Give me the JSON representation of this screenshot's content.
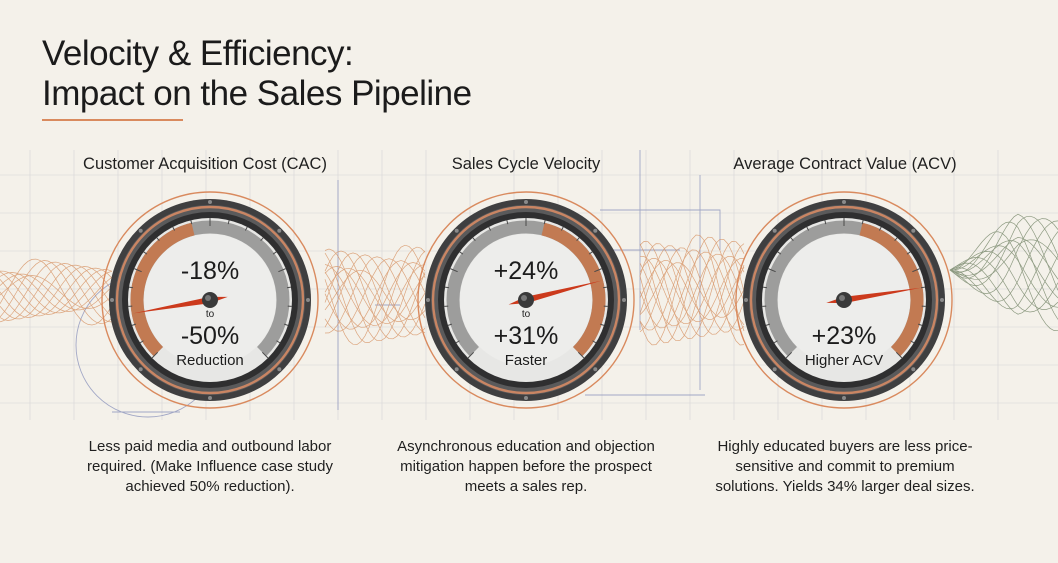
{
  "title": {
    "line1": "Velocity & Efficiency:",
    "line2": "Impact on the Sales Pipeline"
  },
  "colors": {
    "accent": "#d98a5e",
    "needle": "#cc3a1c",
    "bezel": "#4d4d4d",
    "face": "#e7e7e5",
    "wave_orange": "#d48c5a",
    "wave_green": "#6b7d5e"
  },
  "gauges": [
    {
      "title": "Customer Acquisition Cost (CAC)",
      "value_top": "-18%",
      "joiner": "to",
      "value_bottom": "-50%",
      "caption": "Reduction",
      "needle_level": 0.13,
      "highlight_side": "left",
      "description": "Less paid media and outbound labor required. (Make Influence case study achieved 50% reduction)."
    },
    {
      "title": "Sales Cycle Velocity",
      "value_top": "+24%",
      "joiner": "to",
      "value_bottom": "+31%",
      "caption": "Faster",
      "needle_level": 0.78,
      "highlight_side": "right",
      "description": "Asynchronous education and objection mitigation happen before the prospect meets a sales rep."
    },
    {
      "title": "Average Contract Value (ACV)",
      "value_top": "",
      "joiner": "",
      "value_bottom": "+23%",
      "caption": "Higher ACV",
      "needle_level": 0.8,
      "highlight_side": "right",
      "description": "Highly educated buyers are less price-sensitive and commit to premium solutions. Yields 34% larger deal sizes."
    }
  ]
}
